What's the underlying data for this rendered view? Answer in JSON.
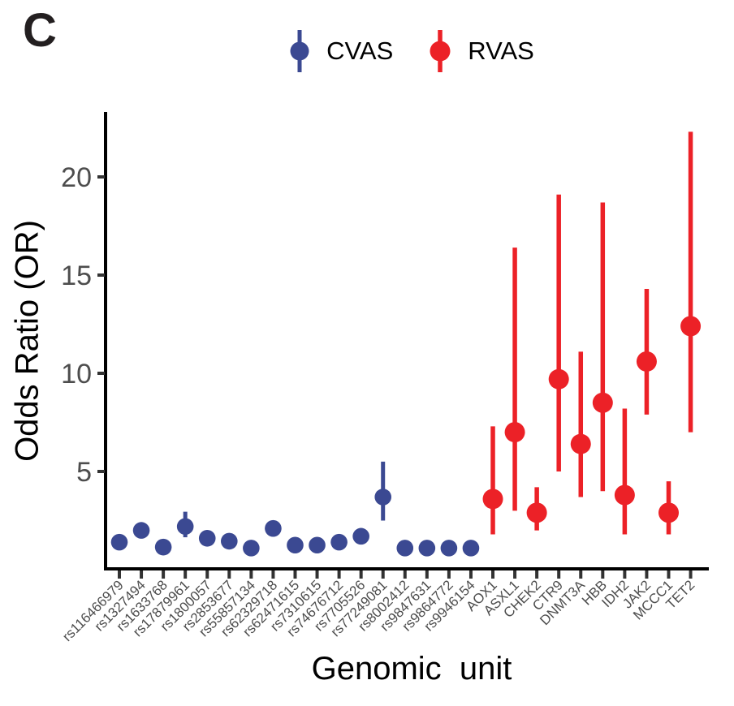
{
  "panel_label": "C",
  "chart_data": {
    "type": "scatter",
    "subtype": "pointrange",
    "title": "C",
    "xlabel": "Genomic  unit",
    "ylabel": "Odds Ratio (OR)",
    "ylim": [
      0,
      23
    ],
    "y_ticks": [
      5,
      10,
      15,
      20
    ],
    "grid": false,
    "legend_position": "top",
    "categories": [
      "rs116466979",
      "rs1327494",
      "rs1633768",
      "rs17879961",
      "rs1800057",
      "rs2853677",
      "rs55857134",
      "rs62329718",
      "rs62471615",
      "rs7310615",
      "rs74676712",
      "rs7705526",
      "rs77249081",
      "rs8002412",
      "rs9847631",
      "rs9864772",
      "rs9946154",
      "AOX1",
      "ASXL1",
      "CHEK2",
      "CTR9",
      "DNMT3A",
      "HBB",
      "IDH2",
      "JAK2",
      "MCCC1",
      "TET2"
    ],
    "series": [
      {
        "name": "CVAS",
        "color": "#3B4992",
        "points": [
          {
            "category": "rs116466979",
            "or": 1.4,
            "ci_low": 1.4,
            "ci_high": 1.4
          },
          {
            "category": "rs1327494",
            "or": 2.0,
            "ci_low": 2.0,
            "ci_high": 2.0
          },
          {
            "category": "rs1633768",
            "or": 1.15,
            "ci_low": 1.15,
            "ci_high": 1.15
          },
          {
            "category": "rs17879961",
            "or": 2.2,
            "ci_low": 1.65,
            "ci_high": 2.95
          },
          {
            "category": "rs1800057",
            "or": 1.6,
            "ci_low": 1.6,
            "ci_high": 1.6
          },
          {
            "category": "rs2853677",
            "or": 1.45,
            "ci_low": 1.45,
            "ci_high": 1.45
          },
          {
            "category": "rs55857134",
            "or": 1.1,
            "ci_low": 1.1,
            "ci_high": 1.1
          },
          {
            "category": "rs62329718",
            "or": 2.1,
            "ci_low": 2.1,
            "ci_high": 2.1
          },
          {
            "category": "rs62471615",
            "or": 1.25,
            "ci_low": 1.25,
            "ci_high": 1.25
          },
          {
            "category": "rs7310615",
            "or": 1.25,
            "ci_low": 1.25,
            "ci_high": 1.25
          },
          {
            "category": "rs74676712",
            "or": 1.4,
            "ci_low": 1.4,
            "ci_high": 1.4
          },
          {
            "category": "rs7705526",
            "or": 1.7,
            "ci_low": 1.7,
            "ci_high": 1.7
          },
          {
            "category": "rs77249081",
            "or": 3.7,
            "ci_low": 2.5,
            "ci_high": 5.5
          },
          {
            "category": "rs8002412",
            "or": 1.1,
            "ci_low": 1.1,
            "ci_high": 1.1
          },
          {
            "category": "rs9847631",
            "or": 1.1,
            "ci_low": 1.1,
            "ci_high": 1.1
          },
          {
            "category": "rs9864772",
            "or": 1.1,
            "ci_low": 1.1,
            "ci_high": 1.1
          },
          {
            "category": "rs9946154",
            "or": 1.1,
            "ci_low": 1.1,
            "ci_high": 1.1
          }
        ]
      },
      {
        "name": "RVAS",
        "color": "#EC2127",
        "points": [
          {
            "category": "AOX1",
            "or": 3.6,
            "ci_low": 1.8,
            "ci_high": 7.3
          },
          {
            "category": "ASXL1",
            "or": 7.0,
            "ci_low": 3.0,
            "ci_high": 16.4
          },
          {
            "category": "CHEK2",
            "or": 2.9,
            "ci_low": 2.0,
            "ci_high": 4.2
          },
          {
            "category": "CTR9",
            "or": 9.7,
            "ci_low": 5.0,
            "ci_high": 19.1
          },
          {
            "category": "DNMT3A",
            "or": 6.4,
            "ci_low": 3.7,
            "ci_high": 11.1
          },
          {
            "category": "HBB",
            "or": 8.5,
            "ci_low": 4.0,
            "ci_high": 18.7
          },
          {
            "category": "IDH2",
            "or": 3.8,
            "ci_low": 1.8,
            "ci_high": 8.2
          },
          {
            "category": "JAK2",
            "or": 10.6,
            "ci_low": 7.9,
            "ci_high": 14.3
          },
          {
            "category": "MCCC1",
            "or": 2.9,
            "ci_low": 1.8,
            "ci_high": 4.5
          },
          {
            "category": "TET2",
            "or": 12.4,
            "ci_low": 7.0,
            "ci_high": 22.3
          }
        ]
      }
    ]
  }
}
